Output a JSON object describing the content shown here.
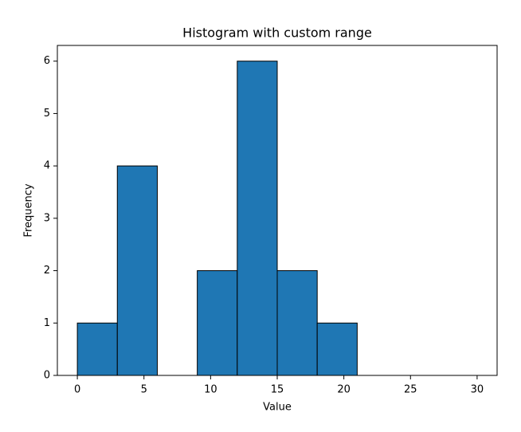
{
  "chart_data": {
    "type": "histogram",
    "title": "Histogram with custom range",
    "x_label": "Value",
    "y_label": "Frequency",
    "bins": [
      0,
      3,
      6,
      9,
      12,
      15,
      18,
      21,
      24,
      27,
      30
    ],
    "counts": [
      1,
      4,
      0,
      2,
      6,
      2,
      1,
      0,
      0,
      0
    ],
    "color": "#1f77b4",
    "edgecolor": "#000000",
    "xlim": [
      -1.5,
      31.5
    ],
    "ylim": [
      0,
      6.3
    ],
    "xticks": [
      0,
      5,
      10,
      15,
      20,
      25,
      30
    ],
    "yticks": [
      0,
      1,
      2,
      3,
      4,
      5,
      6
    ]
  }
}
